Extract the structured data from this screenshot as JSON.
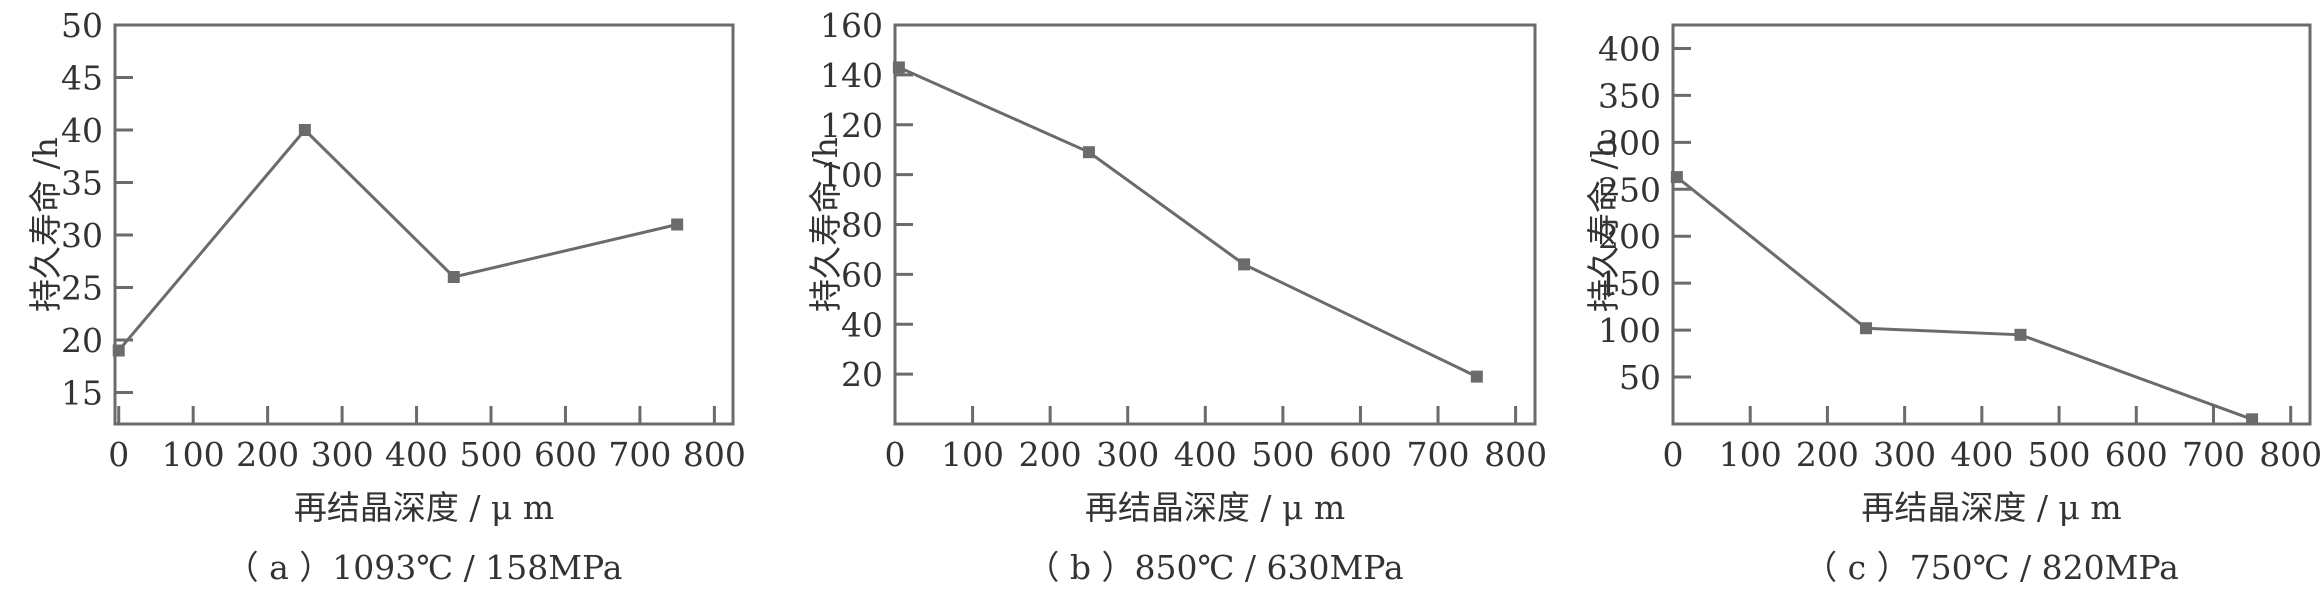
{
  "colors": {
    "line": "#6b6b6b",
    "axis": "#6b6b6b",
    "text": "#333333",
    "background": "#ffffff"
  },
  "chart_data": [
    {
      "type": "line",
      "caption": "（ a ）1093℃ / 158MPa",
      "xlabel": "再结晶深度 / μ m",
      "ylabel": "持久寿命 /h",
      "xlim": [
        -5,
        825
      ],
      "ylim": [
        12,
        50
      ],
      "xticks": [
        0,
        100,
        200,
        300,
        400,
        500,
        600,
        700,
        800
      ],
      "yticks": [
        15,
        20,
        25,
        30,
        35,
        40,
        45,
        50
      ],
      "x": [
        0,
        250,
        450,
        750
      ],
      "y": [
        19,
        40,
        26,
        31
      ],
      "grid": false,
      "marker": "square"
    },
    {
      "type": "line",
      "caption": "（ b ）850℃ / 630MPa",
      "xlabel": "再结晶深度 / μ m",
      "ylabel": "持久寿命 /h",
      "xlim": [
        0,
        825
      ],
      "ylim": [
        0,
        160
      ],
      "xticks": [
        0,
        100,
        200,
        300,
        400,
        500,
        600,
        700,
        800
      ],
      "yticks": [
        20,
        40,
        60,
        80,
        100,
        120,
        140,
        160
      ],
      "x": [
        5,
        250,
        450,
        750
      ],
      "y": [
        143,
        109,
        64,
        19
      ],
      "grid": false,
      "marker": "square"
    },
    {
      "type": "line",
      "caption": "（ c ）750℃ / 820MPa",
      "xlabel": "再结晶深度 / μ m",
      "ylabel": "持久寿命 /h",
      "xlim": [
        0,
        825
      ],
      "ylim": [
        0,
        425
      ],
      "xticks": [
        0,
        100,
        200,
        300,
        400,
        500,
        600,
        700,
        800
      ],
      "yticks": [
        50,
        100,
        150,
        200,
        250,
        300,
        350,
        400
      ],
      "x": [
        5,
        250,
        450,
        750
      ],
      "y": [
        263,
        102,
        95,
        5
      ],
      "grid": false,
      "marker": "square"
    }
  ]
}
